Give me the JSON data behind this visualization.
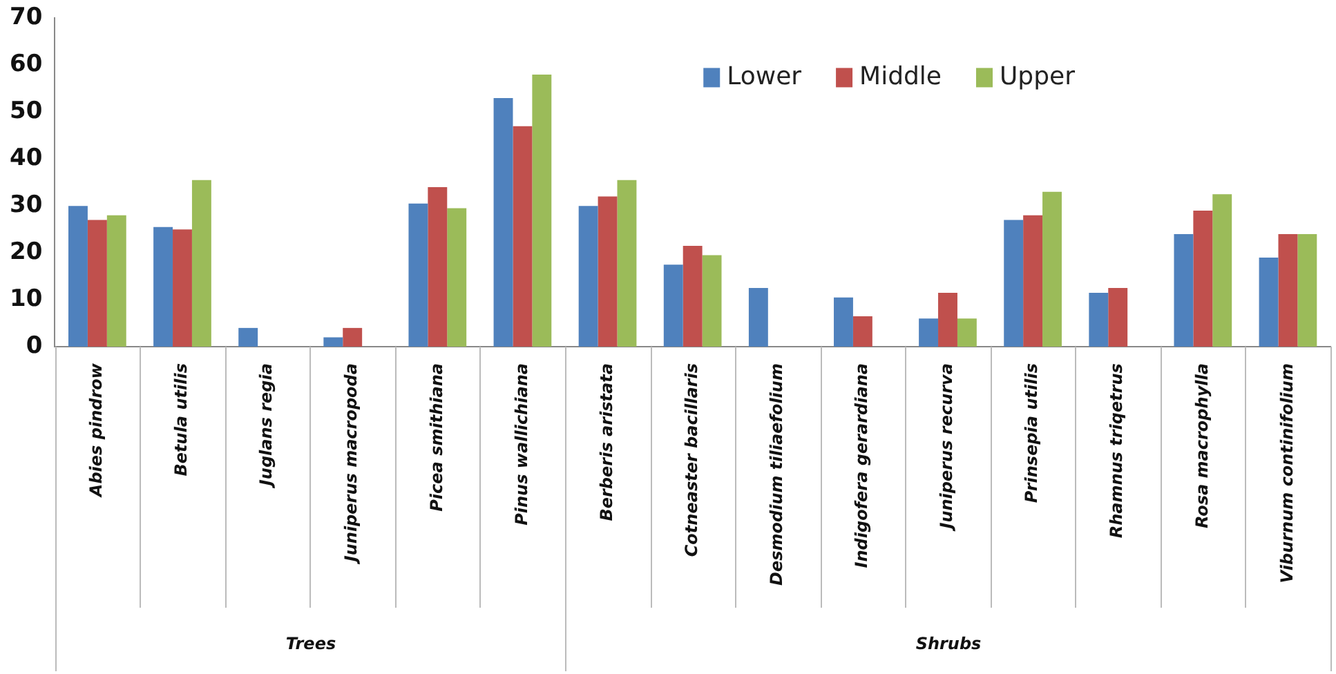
{
  "chart_data": {
    "type": "bar",
    "categories": [
      "Abies pindrow",
      "Betula utilis",
      "Juglans regia",
      "Juniperus macropoda",
      "Picea smithiana",
      "Pinus wallichiana",
      "Berberis aristata",
      "Cotneaster bacillaris",
      "Desmodium tiliaefolium",
      "Indigofera gerardiana",
      "Juniperus recurva",
      "Prinsepia utilis",
      "Rhamnus triqetrus",
      "Rosa macrophylla",
      "Viburnum continifolium"
    ],
    "series": [
      {
        "name": "Lower",
        "color": "#4f81bd",
        "values": [
          30,
          25.5,
          4,
          2,
          30.5,
          53,
          30,
          17.5,
          12.5,
          10.5,
          6,
          27,
          11.5,
          24,
          19
        ]
      },
      {
        "name": "Middle",
        "color": "#c0504d",
        "values": [
          27,
          25,
          null,
          4,
          34,
          47,
          32,
          21.5,
          null,
          6.5,
          11.5,
          28,
          12.5,
          29,
          24
        ]
      },
      {
        "name": "Upper",
        "color": "#9bbb59",
        "values": [
          28,
          35.5,
          null,
          null,
          29.5,
          58,
          35.5,
          19.5,
          null,
          null,
          6,
          33,
          null,
          32.5,
          24
        ]
      }
    ],
    "ylim": [
      0,
      70
    ],
    "yticks": [
      0,
      10,
      20,
      30,
      40,
      50,
      60,
      70
    ],
    "grid": false,
    "legend": "top right",
    "annotations": [
      "Trees",
      "Shrubs"
    ]
  }
}
